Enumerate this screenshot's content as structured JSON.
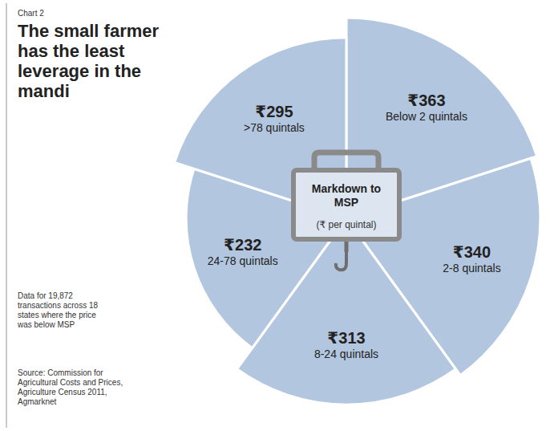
{
  "chart_data": {
    "type": "rose",
    "subtitle": "Chart 2",
    "title": "The small farmer has the least leverage in the mandi",
    "categories": [
      "Below 2 quintals",
      "2-8 quintals",
      "8-24 quintals",
      "24-78 quintals",
      ">78 quintals"
    ],
    "values": [
      363,
      340,
      313,
      232,
      295
    ],
    "value_labels": [
      "₹363",
      "₹340",
      "₹313",
      "₹232",
      "₹295"
    ],
    "data_labels": true,
    "color": "#b3c6df",
    "center_label": "Markdown to MSP",
    "center_unit": "(₹ per quintal)",
    "note": "Data for 19,872 transactions across 18 states where the price was below MSP",
    "source": "Source: Commission for Agricultural Costs and Prices, Agriculture Census 2011, Agmarknet"
  }
}
